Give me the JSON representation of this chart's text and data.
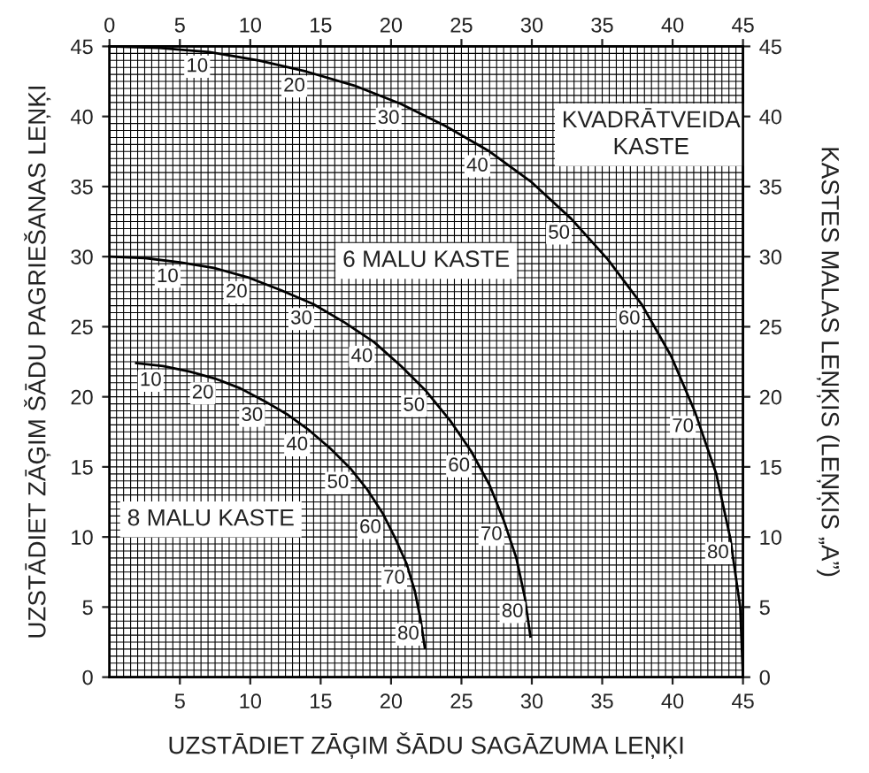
{
  "chart_data": {
    "type": "line",
    "xlabel": "UZSTĀDIET ZĀĢIM ŠĀDU SAGĀZUMA LEŅĶI",
    "ylabel": "UZSTĀDIET ZĀĢIM ŠĀDU PAGRIEŠANAS LEŅĶI",
    "y2label": "KASTES MALAS LEŅĶIS (LEŅĶIS „A”)",
    "xlim": [
      0,
      45
    ],
    "xticks": [
      5,
      10,
      15,
      20,
      25,
      30,
      35,
      40,
      45
    ],
    "x2lim": [
      0,
      45
    ],
    "x2ticks": [
      0,
      5,
      10,
      15,
      20,
      25,
      30,
      35,
      40,
      45
    ],
    "ylim": [
      0,
      45
    ],
    "yticks": [
      0,
      5,
      10,
      15,
      20,
      25,
      30,
      35,
      40,
      45
    ],
    "y2lim": [
      0,
      45
    ],
    "y2ticks": [
      0,
      5,
      10,
      15,
      20,
      25,
      30,
      35,
      40,
      45
    ],
    "grid": true,
    "legend": false,
    "marker": "none",
    "line_style": "solid",
    "series": [
      {
        "name": "KVADRĀTVEIDA\nKASTE",
        "color": "#000000",
        "x": [
          0,
          3.5,
          7.1,
          10.6,
          14.0,
          17.4,
          20.7,
          23.9,
          27.0,
          30.0,
          32.8,
          35.4,
          37.8,
          39.9,
          41.6,
          43.1,
          44.1,
          44.8,
          45
        ],
        "values": [
          45,
          44.9,
          44.6,
          44.0,
          43.2,
          42.2,
          40.9,
          39.3,
          37.5,
          35.3,
          32.7,
          29.8,
          26.6,
          22.9,
          18.9,
          14.5,
          9.9,
          5.0,
          0
        ]
      },
      {
        "name": "6 MALU KASTE",
        "color": "#000000",
        "x": [
          0,
          2.5,
          5.0,
          7.4,
          9.9,
          12.2,
          14.5,
          16.7,
          18.8,
          20.7,
          22.5,
          24.2,
          25.7,
          27.0,
          28.0,
          28.9,
          29.5,
          29.9
        ],
        "values": [
          30,
          29.9,
          29.6,
          29.2,
          28.5,
          27.6,
          26.6,
          25.3,
          23.9,
          22.2,
          20.4,
          18.3,
          16.1,
          13.7,
          11.2,
          8.5,
          5.7,
          2.9
        ]
      },
      {
        "name": "8 MALU KASTE",
        "color": "#000000",
        "x": [
          1.9,
          3.8,
          5.7,
          7.5,
          9.3,
          11.0,
          12.7,
          14.2,
          15.7,
          17.1,
          18.3,
          19.4,
          20.3,
          21.1,
          21.7,
          22.1,
          22.4
        ],
        "values": [
          22.4,
          22.2,
          21.8,
          21.3,
          20.6,
          19.7,
          18.7,
          17.6,
          16.3,
          14.9,
          13.4,
          11.7,
          9.9,
          8.1,
          6.1,
          4.1,
          2.1
        ]
      }
    ],
    "annotations": [
      {
        "text": "10",
        "x": 7.1,
        "y": 44.6
      },
      {
        "text": "20",
        "x": 14.0,
        "y": 43.2
      },
      {
        "text": "30",
        "x": 20.7,
        "y": 40.9
      },
      {
        "text": "40",
        "x": 27.0,
        "y": 37.5
      },
      {
        "text": "50",
        "x": 32.8,
        "y": 32.7
      },
      {
        "text": "60",
        "x": 37.8,
        "y": 26.6
      },
      {
        "text": "70",
        "x": 41.6,
        "y": 18.9
      },
      {
        "text": "80",
        "x": 44.1,
        "y": 9.9
      },
      {
        "text": "10",
        "x": 5.0,
        "y": 29.6
      },
      {
        "text": "20",
        "x": 9.9,
        "y": 28.5
      },
      {
        "text": "30",
        "x": 14.5,
        "y": 26.6
      },
      {
        "text": "40",
        "x": 18.8,
        "y": 23.9
      },
      {
        "text": "50",
        "x": 22.5,
        "y": 20.4
      },
      {
        "text": "60",
        "x": 25.7,
        "y": 16.1
      },
      {
        "text": "70",
        "x": 28.0,
        "y": 11.2
      },
      {
        "text": "80",
        "x": 29.5,
        "y": 5.7
      },
      {
        "text": "10",
        "x": 3.8,
        "y": 22.2
      },
      {
        "text": "20",
        "x": 7.5,
        "y": 21.3
      },
      {
        "text": "30",
        "x": 11.0,
        "y": 19.7
      },
      {
        "text": "40",
        "x": 14.2,
        "y": 17.6
      },
      {
        "text": "50",
        "x": 17.1,
        "y": 14.9
      },
      {
        "text": "60",
        "x": 19.4,
        "y": 11.7
      },
      {
        "text": "70",
        "x": 21.1,
        "y": 8.1
      },
      {
        "text": "80",
        "x": 22.1,
        "y": 4.1
      }
    ]
  }
}
